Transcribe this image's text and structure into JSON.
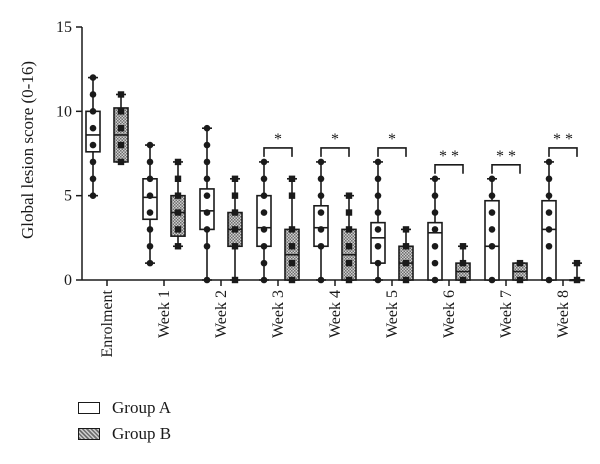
{
  "colors": {
    "group_a_fill": "#ffffff",
    "group_b_fill": "#9a9a9a",
    "line": "#1a1a1a"
  },
  "chart_data": {
    "type": "box",
    "title": "",
    "xlabel": "",
    "ylabel": "Global lesion score (0-16)",
    "ylim": [
      0,
      15
    ],
    "yticks": [
      "0",
      "5",
      "10",
      "15"
    ],
    "categories": [
      "Enrolment",
      "Week 1",
      "Week 2",
      "Week 3",
      "Week 4",
      "Week 5",
      "Week 6",
      "Week 7",
      "Week 8"
    ],
    "legend_position": "bottom-left",
    "series": [
      {
        "name": "Group A",
        "boxes": [
          {
            "min": 5,
            "q1": 7.6,
            "median": 8.6,
            "q3": 10,
            "max": 12,
            "points": [
              5,
              6,
              7,
              8,
              9,
              10,
              11,
              12
            ]
          },
          {
            "min": 1,
            "q1": 3.6,
            "median": 4.9,
            "q3": 6,
            "max": 8,
            "points": [
              1,
              2,
              3,
              4,
              5,
              6,
              7,
              8
            ]
          },
          {
            "min": 0,
            "q1": 3,
            "median": 4.1,
            "q3": 5.4,
            "max": 9,
            "points": [
              0,
              2,
              3,
              4,
              5,
              6,
              7,
              8,
              9
            ]
          },
          {
            "min": 0,
            "q1": 2,
            "median": 3.1,
            "q3": 5,
            "max": 7,
            "points": [
              0,
              1,
              2,
              3,
              4,
              5,
              6,
              7
            ]
          },
          {
            "min": 0,
            "q1": 2,
            "median": 3.1,
            "q3": 4.4,
            "max": 7,
            "points": [
              0,
              2,
              3,
              4,
              5,
              6,
              7
            ]
          },
          {
            "min": 0,
            "q1": 1,
            "median": 2.5,
            "q3": 3.4,
            "max": 7,
            "points": [
              0,
              1,
              2,
              3,
              4,
              5,
              6,
              7
            ]
          },
          {
            "min": 0,
            "q1": 0,
            "median": 2.8,
            "q3": 3.4,
            "max": 6,
            "points": [
              0,
              1,
              2,
              3,
              4,
              5,
              6
            ]
          },
          {
            "min": 0,
            "q1": 0,
            "median": 2,
            "q3": 4.7,
            "max": 6,
            "points": [
              0,
              2,
              3,
              4,
              5,
              6
            ]
          },
          {
            "min": 0,
            "q1": 0,
            "median": 3,
            "q3": 4.7,
            "max": 7,
            "points": [
              0,
              2,
              3,
              4,
              5,
              6,
              7
            ]
          }
        ]
      },
      {
        "name": "Group B",
        "boxes": [
          {
            "min": 7,
            "q1": 7,
            "median": 8.6,
            "q3": 10.2,
            "max": 11,
            "points": [
              7,
              8,
              9,
              10,
              11
            ]
          },
          {
            "min": 2,
            "q1": 2.6,
            "median": 4,
            "q3": 5,
            "max": 7,
            "points": [
              2,
              3,
              4,
              5,
              6,
              7
            ]
          },
          {
            "min": 0,
            "q1": 2,
            "median": 3,
            "q3": 4,
            "max": 6,
            "points": [
              0,
              2,
              3,
              4,
              5,
              6
            ]
          },
          {
            "min": 0,
            "q1": 0,
            "median": 1.5,
            "q3": 3,
            "max": 6,
            "points": [
              0,
              1,
              2,
              3,
              5,
              6
            ]
          },
          {
            "min": 0,
            "q1": 0,
            "median": 1.5,
            "q3": 3,
            "max": 5,
            "points": [
              0,
              1,
              2,
              3,
              4,
              5
            ]
          },
          {
            "min": 0,
            "q1": 0,
            "median": 1,
            "q3": 2,
            "max": 3,
            "points": [
              0,
              1,
              2,
              3
            ]
          },
          {
            "min": 0,
            "q1": 0,
            "median": 0.5,
            "q3": 1,
            "max": 2,
            "points": [
              0,
              1,
              2
            ]
          },
          {
            "min": 0,
            "q1": 0,
            "median": 0.5,
            "q3": 1,
            "max": 1,
            "points": [
              0,
              1
            ]
          },
          {
            "min": 0,
            "q1": 0,
            "median": 0,
            "q3": 0,
            "max": 1,
            "points": [
              0,
              1
            ]
          }
        ]
      }
    ],
    "significance": [
      {
        "category": "Week 3",
        "label": "*"
      },
      {
        "category": "Week 4",
        "label": "*"
      },
      {
        "category": "Week 5",
        "label": "*"
      },
      {
        "category": "Week 6",
        "label": "* *"
      },
      {
        "category": "Week 7",
        "label": "* *"
      },
      {
        "category": "Week 8",
        "label": "* *"
      }
    ]
  }
}
